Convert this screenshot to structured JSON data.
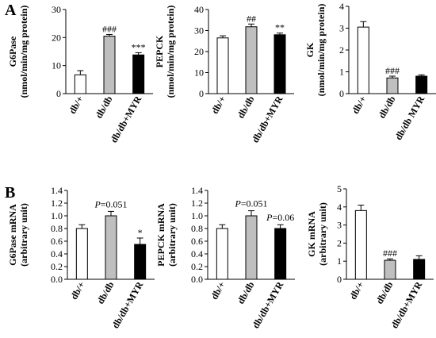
{
  "panels": {
    "a": "A",
    "b": "B"
  },
  "colors": {
    "db_plus": "#ffffff",
    "db_db": "#bfbfbf",
    "myr": "#000000",
    "axis": "#000000"
  },
  "chart_data": [
    {
      "type": "bar",
      "ylabel": [
        "G6Pase",
        "(nmol/min/mg protein)"
      ],
      "ylim": [
        0,
        30
      ],
      "yticks": [
        0,
        10,
        20,
        30
      ],
      "categories": [
        "db/+",
        "db/db",
        "db/db+MYR"
      ],
      "values": [
        6.7,
        20.5,
        13.8
      ],
      "errors": [
        1.5,
        0.6,
        0.8
      ],
      "annotations": [
        "",
        "###",
        "***"
      ],
      "p_labels": []
    },
    {
      "type": "bar",
      "ylabel": [
        "PEPCK",
        "(nmol/min/mg protein)"
      ],
      "ylim": [
        0,
        40
      ],
      "yticks": [
        0,
        10,
        20,
        30,
        40
      ],
      "categories": [
        "db/+",
        "db/db",
        "db/db+MYR"
      ],
      "values": [
        26.5,
        31.8,
        28.0
      ],
      "errors": [
        1.0,
        1.3,
        0.8
      ],
      "annotations": [
        "",
        "##",
        "**"
      ],
      "p_labels": []
    },
    {
      "type": "bar",
      "ylabel": [
        "GK",
        "(nmol/min/mg protein)"
      ],
      "ylim": [
        0,
        4
      ],
      "yticks": [
        0,
        1,
        2,
        3,
        4
      ],
      "categories": [
        "db/+",
        "db/db",
        "db/db MYR"
      ],
      "values": [
        3.05,
        0.72,
        0.8
      ],
      "errors": [
        0.25,
        0.08,
        0.06
      ],
      "annotations": [
        "",
        "###",
        ""
      ],
      "p_labels": []
    },
    {
      "type": "bar",
      "ylabel": [
        "G6Pase mRNA",
        "(arbitrary unit)"
      ],
      "ylim": [
        0,
        1.4
      ],
      "yticks": [
        "0.0",
        "0.2",
        "0.4",
        "0.6",
        "0.8",
        "1.0",
        "1.2",
        "1.4"
      ],
      "categories": [
        "db/+",
        "db/db",
        "db/db+MYR"
      ],
      "values": [
        0.8,
        1.0,
        0.55
      ],
      "errors": [
        0.06,
        0.07,
        0.1
      ],
      "annotations": [
        "",
        "",
        "*"
      ],
      "p_labels": [
        {
          "prefix": "P",
          "text": "=0.051",
          "over": 1
        }
      ]
    },
    {
      "type": "bar",
      "ylabel": [
        "PEPCK mRNA",
        "(arbitrary unit)"
      ],
      "ylim": [
        0,
        1.4
      ],
      "yticks": [
        "0.0",
        "0.2",
        "0.4",
        "0.6",
        "0.8",
        "1.0",
        "1.2",
        "1.4"
      ],
      "categories": [
        "db/+",
        "db/db",
        "db/db+MYR"
      ],
      "values": [
        0.8,
        1.0,
        0.8
      ],
      "errors": [
        0.06,
        0.08,
        0.06
      ],
      "annotations": [
        "",
        "",
        ""
      ],
      "p_labels": [
        {
          "prefix": "P",
          "text": "=0.051",
          "over": 1
        },
        {
          "prefix": "P",
          "text": "=0.06",
          "over": 2
        }
      ]
    },
    {
      "type": "bar",
      "ylabel": [
        "GK mRNA",
        "(arbitrary unit)"
      ],
      "ylim": [
        0,
        5
      ],
      "yticks": [
        0,
        1,
        2,
        3,
        4,
        5
      ],
      "categories": [
        "db/+",
        "db/db",
        "db/db+MYR"
      ],
      "values": [
        3.8,
        1.05,
        1.1
      ],
      "errors": [
        0.3,
        0.08,
        0.2
      ],
      "annotations": [
        "",
        "###",
        ""
      ],
      "p_labels": []
    }
  ]
}
